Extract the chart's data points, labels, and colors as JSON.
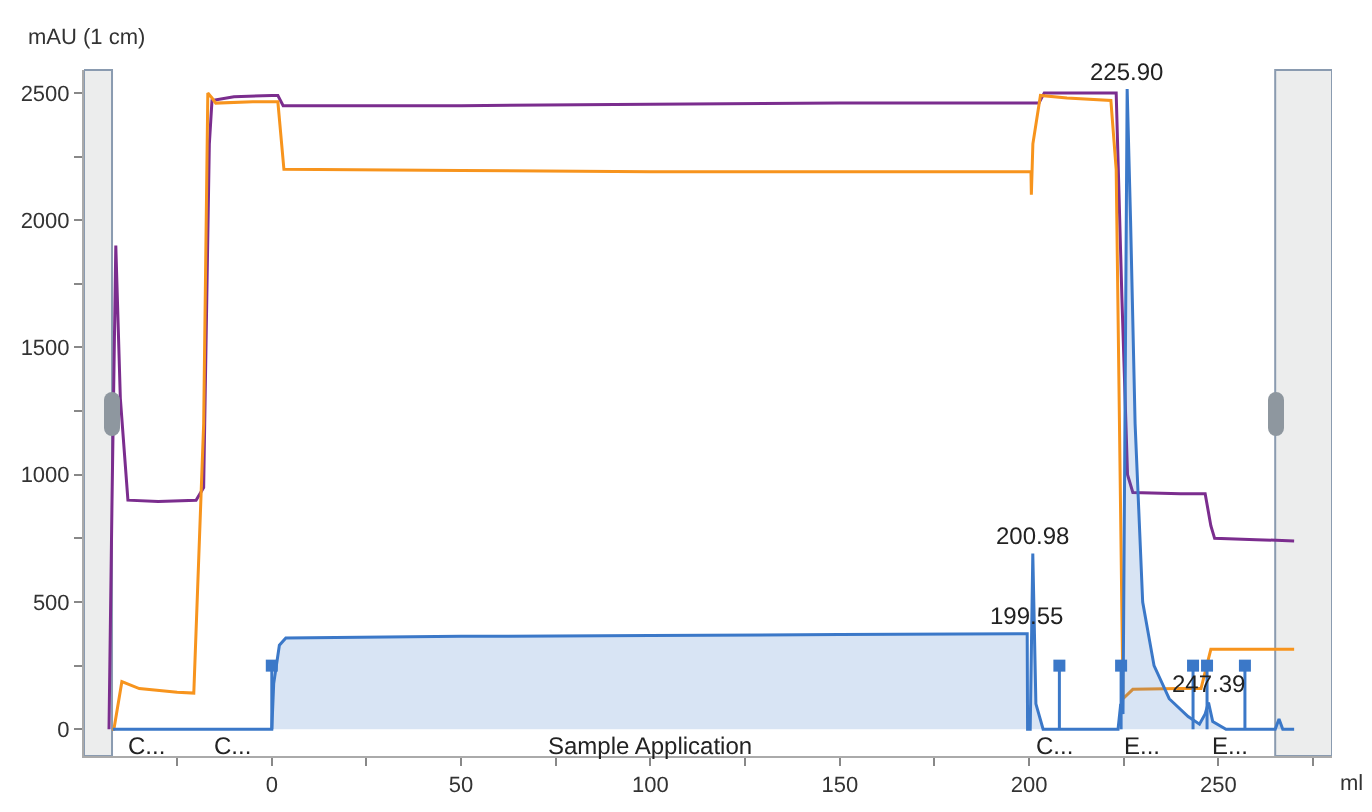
{
  "chart_data": {
    "type": "line",
    "xlabel": "ml",
    "ylabel": "mAU (1 cm)",
    "xlim": [
      -49.6,
      280
    ],
    "ylim": [
      -105,
      2590
    ],
    "xticks": [
      {
        "value": -25,
        "label": null
      },
      0,
      {
        "value": 25,
        "label": null
      },
      50,
      {
        "value": 75,
        "label": null
      },
      100,
      {
        "value": 125,
        "label": null
      },
      150,
      {
        "value": 175,
        "label": null
      },
      200,
      {
        "value": 225,
        "label": null
      },
      250,
      {
        "value": 275,
        "label": null
      }
    ],
    "yticks": [
      0,
      {
        "value": 250,
        "label": null
      },
      500,
      {
        "value": 750,
        "label": null
      },
      1000,
      {
        "value": 1250,
        "label": null
      },
      1500,
      {
        "value": 1750,
        "label": null
      },
      2000,
      {
        "value": 2250,
        "label": null
      },
      2500
    ],
    "grid": false,
    "marker": "none",
    "line_style": "solid",
    "series": [
      {
        "color": "#7b2d8e",
        "x": [
          -43,
          -42.2,
          -41.2,
          -40,
          -38,
          -30,
          -20,
          -18,
          -16.5,
          -15.8,
          -10,
          0,
          1.6,
          3,
          50,
          100,
          150,
          200,
          202.6,
          204,
          215,
          223,
          224.5,
          226,
          227.4,
          240,
          246.5,
          248,
          249,
          260,
          270
        ],
        "values": [
          0,
          900,
          1900,
          1300,
          900,
          895,
          900,
          950,
          2300,
          2470,
          2485,
          2490,
          2490,
          2450,
          2450,
          2455,
          2460,
          2460,
          2460,
          2500,
          2500,
          2500,
          1700,
          1000,
          930,
          925,
          925,
          800,
          750,
          745,
          740
        ]
      },
      {
        "color": "#f7941d",
        "x": [
          -42.2,
          -41.7,
          -39.6,
          -35,
          -25,
          -20.6,
          -18,
          -16.9,
          -15.8,
          -14.8,
          -5,
          1.6,
          3.2,
          50,
          100,
          150,
          200.5,
          200.6,
          201,
          203,
          210,
          221.6,
          223,
          224.8,
          227.4,
          240,
          245.4,
          248,
          260,
          270
        ],
        "values": [
          0,
          0,
          187,
          160,
          145,
          142,
          1200,
          2500,
          2480,
          2460,
          2465,
          2465,
          2200,
          2195,
          2190,
          2190,
          2190,
          2100,
          2300,
          2490,
          2480,
          2470,
          2200,
          120,
          157,
          160,
          160,
          314,
          314,
          314
        ]
      },
      {
        "type": "area",
        "color": "#3b78c8",
        "x": [
          -42,
          -30,
          -10,
          0,
          0.5,
          2,
          3.7,
          50,
          100,
          150,
          199.5,
          199.6,
          200.3,
          200.98,
          201.8,
          203.7,
          215,
          223.5,
          224.2,
          224.8,
          225.9,
          226.8,
          228,
          230,
          233,
          237,
          242,
          245,
          246.5,
          247.39,
          248.5,
          252,
          260,
          265,
          266,
          267,
          270
        ],
        "values": [
          0,
          0,
          0,
          0,
          180,
          330,
          359,
          365,
          368,
          372,
          375,
          0,
          0,
          690,
          100,
          0,
          0,
          0,
          100,
          60,
          2515,
          2000,
          1200,
          500,
          250,
          120,
          50,
          20,
          60,
          105,
          30,
          0,
          0,
          0,
          40,
          0,
          0
        ]
      },
      {
        "type": "lollipop",
        "color": "#3b78c8",
        "marker": "square",
        "x": [
          0,
          208,
          224.3,
          243.3,
          247,
          257
        ],
        "values": [
          250,
          250,
          250,
          250,
          250,
          250
        ]
      }
    ],
    "bands": [
      {
        "axis": "x",
        "from": -49.6,
        "to": -42.2,
        "color": "#eceded"
      },
      {
        "axis": "x",
        "from": 265,
        "to": 280,
        "color": "#eceded"
      }
    ],
    "annotations": [
      {
        "text": "225.90",
        "x": 225.9,
        "y": 2515
      },
      {
        "text": "200.98",
        "x": 200.98,
        "y": 690
      },
      {
        "text": "199.55",
        "x": 199.55,
        "y": 375
      },
      {
        "text": "247.39",
        "x": 247.39,
        "y": 105
      },
      {
        "text": "C...",
        "x": -33,
        "y": 0
      },
      {
        "text": "C...",
        "x": -10.5,
        "y": 0
      },
      {
        "text": "Sample Application",
        "x": 100,
        "y": 0
      },
      {
        "text": "C...",
        "x": 207,
        "y": 0
      },
      {
        "text": "E...",
        "x": 230,
        "y": 0
      },
      {
        "text": "E...",
        "x": 253,
        "y": 0
      }
    ]
  }
}
